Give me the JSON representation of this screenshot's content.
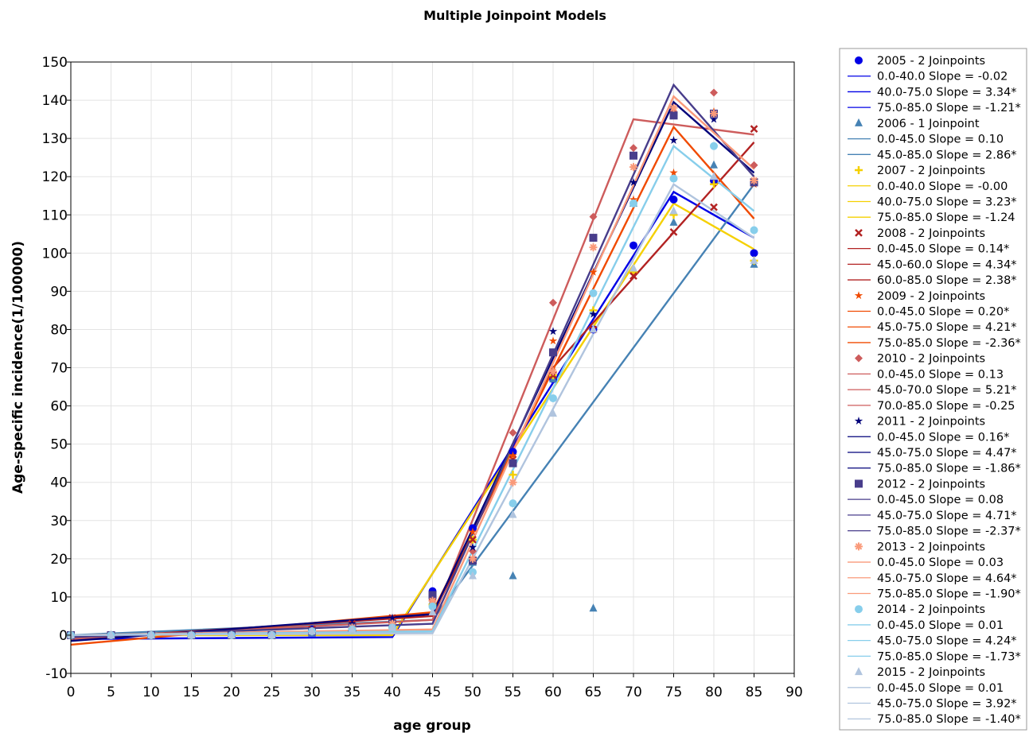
{
  "chart_data": {
    "type": "line",
    "title": "Multiple Joinpoint Models",
    "xlabel": "age group",
    "ylabel": "Age-specific incidence(1/100000)",
    "xlim": [
      0,
      90
    ],
    "ylim": [
      -10,
      150
    ],
    "grid": true,
    "legend_position": "right",
    "x_ticks": [
      "0",
      "5",
      "10",
      "15",
      "20",
      "25",
      "30",
      "35",
      "40",
      "45",
      "50",
      "55",
      "60",
      "65",
      "70",
      "75",
      "80",
      "85",
      "90"
    ],
    "y_ticks": [
      "-10",
      "0",
      "10",
      "20",
      "30",
      "40",
      "50",
      "60",
      "70",
      "80",
      "90",
      "100",
      "110",
      "120",
      "130",
      "140",
      "150"
    ],
    "series": [
      {
        "name": "2005 - 2 Joinpoints",
        "color": "#0000e6",
        "marker": "circle",
        "points": [
          [
            0,
            0
          ],
          [
            5,
            0
          ],
          [
            10,
            0
          ],
          [
            15,
            0
          ],
          [
            20,
            0
          ],
          [
            25,
            0
          ],
          [
            30,
            1.5
          ],
          [
            35,
            2
          ],
          [
            40,
            3.5
          ],
          [
            45,
            11.5
          ],
          [
            50,
            28
          ],
          [
            55,
            48
          ],
          [
            60,
            67
          ],
          [
            65,
            80
          ],
          [
            70,
            102
          ],
          [
            75,
            114
          ],
          [
            80,
            119
          ],
          [
            85,
            100
          ]
        ],
        "fit": [
          [
            0,
            -1
          ],
          [
            40,
            -0.5
          ],
          [
            75,
            116
          ],
          [
            85,
            104
          ]
        ],
        "segments": [
          "0.0-40.0 Slope = -0.02",
          "40.0-75.0 Slope =  3.34*",
          "75.0-85.0 Slope = -1.21*"
        ]
      },
      {
        "name": "2006 - 1 Joinpoint",
        "color": "#4682b4",
        "marker": "triangle",
        "points": [
          [
            0,
            0
          ],
          [
            5,
            0
          ],
          [
            10,
            0
          ],
          [
            15,
            0
          ],
          [
            20,
            0
          ],
          [
            25,
            0
          ],
          [
            30,
            0.5
          ],
          [
            35,
            2
          ],
          [
            40,
            3
          ],
          [
            45,
            9
          ],
          [
            50,
            19
          ],
          [
            55,
            15.5
          ],
          [
            60,
            67
          ],
          [
            65,
            7
          ],
          [
            70,
            113
          ],
          [
            75,
            108
          ],
          [
            80,
            123
          ],
          [
            85,
            97
          ]
        ],
        "fit": [
          [
            0,
            0
          ],
          [
            45,
            4
          ],
          [
            85,
            118
          ]
        ],
        "segments": [
          "0.0-45.0 Slope =  0.10",
          "45.0-85.0 Slope =  2.86*"
        ]
      },
      {
        "name": "2007 - 2 Joinpoints",
        "color": "#f5d000",
        "marker": "plus",
        "points": [
          [
            0,
            0
          ],
          [
            5,
            0
          ],
          [
            10,
            0
          ],
          [
            15,
            0
          ],
          [
            20,
            0
          ],
          [
            25,
            0
          ],
          [
            30,
            1
          ],
          [
            35,
            1.5
          ],
          [
            40,
            2
          ],
          [
            45,
            8
          ],
          [
            50,
            25
          ],
          [
            55,
            42
          ],
          [
            60,
            68
          ],
          [
            65,
            85
          ],
          [
            70,
            95
          ],
          [
            75,
            110
          ],
          [
            80,
            118
          ],
          [
            85,
            98
          ]
        ],
        "fit": [
          [
            0,
            0
          ],
          [
            40,
            0
          ],
          [
            75,
            113
          ],
          [
            85,
            101
          ]
        ],
        "segments": [
          "0.0-40.0 Slope = -0.00",
          "40.0-75.0 Slope =  3.23*",
          "75.0-85.0 Slope = -1.24"
        ]
      },
      {
        "name": "2008 - 2 Joinpoints",
        "color": "#b22222",
        "marker": "x",
        "points": [
          [
            0,
            0
          ],
          [
            5,
            0
          ],
          [
            10,
            0
          ],
          [
            15,
            0
          ],
          [
            20,
            0
          ],
          [
            25,
            0
          ],
          [
            30,
            1.5
          ],
          [
            35,
            3
          ],
          [
            40,
            4.5
          ],
          [
            45,
            10
          ],
          [
            50,
            25
          ],
          [
            55,
            46
          ],
          [
            60,
            68
          ],
          [
            65,
            80
          ],
          [
            70,
            94
          ],
          [
            75,
            105.5
          ],
          [
            80,
            112
          ],
          [
            85,
            132.5
          ]
        ],
        "fit": [
          [
            0,
            -1
          ],
          [
            45,
            5
          ],
          [
            60,
            70
          ],
          [
            85,
            129
          ]
        ],
        "segments": [
          "0.0-45.0 Slope =  0.14*",
          "45.0-60.0 Slope =  4.34*",
          "60.0-85.0 Slope =  2.38*"
        ]
      },
      {
        "name": "2009 - 2 Joinpoints",
        "color": "#f04a00",
        "marker": "star",
        "points": [
          [
            0,
            0
          ],
          [
            5,
            0
          ],
          [
            10,
            0
          ],
          [
            15,
            0
          ],
          [
            20,
            0
          ],
          [
            25,
            0
          ],
          [
            30,
            1.5
          ],
          [
            35,
            2.5
          ],
          [
            40,
            4
          ],
          [
            45,
            10
          ],
          [
            50,
            27
          ],
          [
            55,
            47
          ],
          [
            60,
            77
          ],
          [
            65,
            95
          ],
          [
            70,
            114
          ],
          [
            75,
            121
          ],
          [
            80,
            137
          ],
          [
            85,
            118
          ]
        ],
        "fit": [
          [
            0,
            -2.5
          ],
          [
            45,
            6
          ],
          [
            75,
            133
          ],
          [
            85,
            109
          ]
        ],
        "segments": [
          "0.0-45.0 Slope =  0.20*",
          "45.0-75.0 Slope =  4.21*",
          "75.0-85.0 Slope = -2.36*"
        ]
      },
      {
        "name": "2010 - 2 Joinpoints",
        "color": "#cd5c5c",
        "marker": "diamond",
        "points": [
          [
            0,
            0
          ],
          [
            5,
            0
          ],
          [
            10,
            0
          ],
          [
            15,
            0
          ],
          [
            20,
            0
          ],
          [
            25,
            0
          ],
          [
            30,
            1
          ],
          [
            35,
            2
          ],
          [
            40,
            3
          ],
          [
            45,
            9
          ],
          [
            50,
            22
          ],
          [
            55,
            53
          ],
          [
            60,
            87
          ],
          [
            65,
            109.5
          ],
          [
            70,
            127.5
          ],
          [
            75,
            137
          ],
          [
            80,
            142
          ],
          [
            85,
            123
          ]
        ],
        "fit": [
          [
            0,
            -1
          ],
          [
            45,
            4
          ],
          [
            70,
            135
          ],
          [
            85,
            131
          ]
        ],
        "segments": [
          "0.0-45.0 Slope =  0.13",
          "45.0-70.0 Slope =  5.21*",
          "70.0-85.0 Slope = -0.25"
        ]
      },
      {
        "name": "2011 - 2 Joinpoints",
        "color": "#00007a",
        "marker": "star",
        "points": [
          [
            0,
            0
          ],
          [
            5,
            0
          ],
          [
            10,
            0
          ],
          [
            15,
            0
          ],
          [
            20,
            0
          ],
          [
            25,
            0
          ],
          [
            30,
            1.5
          ],
          [
            35,
            3
          ],
          [
            40,
            4.5
          ],
          [
            45,
            10
          ],
          [
            50,
            23
          ],
          [
            55,
            45
          ],
          [
            60,
            79.5
          ],
          [
            65,
            84
          ],
          [
            70,
            118.5
          ],
          [
            75,
            129.5
          ],
          [
            80,
            135
          ],
          [
            85,
            118.5
          ]
        ],
        "fit": [
          [
            0,
            -1.5
          ],
          [
            45,
            5.5
          ],
          [
            75,
            139.5
          ],
          [
            85,
            121
          ]
        ],
        "segments": [
          "0.0-45.0 Slope =  0.16*",
          "45.0-75.0 Slope =  4.47*",
          "75.0-85.0 Slope = -1.86*"
        ]
      },
      {
        "name": "2012 - 2 Joinpoints",
        "color": "#483d8b",
        "marker": "square",
        "points": [
          [
            0,
            0
          ],
          [
            5,
            0
          ],
          [
            10,
            0
          ],
          [
            15,
            0
          ],
          [
            20,
            0
          ],
          [
            25,
            0
          ],
          [
            30,
            1
          ],
          [
            35,
            2
          ],
          [
            40,
            3
          ],
          [
            45,
            10.5
          ],
          [
            50,
            19.5
          ],
          [
            55,
            45
          ],
          [
            60,
            74
          ],
          [
            65,
            104
          ],
          [
            70,
            125.5
          ],
          [
            75,
            136
          ],
          [
            80,
            136.5
          ],
          [
            85,
            118.5
          ]
        ],
        "fit": [
          [
            0,
            -0.5
          ],
          [
            45,
            3
          ],
          [
            75,
            144
          ],
          [
            85,
            120
          ]
        ],
        "segments": [
          "0.0-45.0 Slope =  0.08",
          "45.0-75.0 Slope =  4.71*",
          "75.0-85.0 Slope = -2.37*"
        ]
      },
      {
        "name": "2013 - 2 Joinpoints",
        "color": "#fa9a7a",
        "marker": "asterisk",
        "points": [
          [
            0,
            0
          ],
          [
            5,
            0
          ],
          [
            10,
            0
          ],
          [
            15,
            0
          ],
          [
            20,
            0
          ],
          [
            25,
            0
          ],
          [
            30,
            1
          ],
          [
            35,
            2
          ],
          [
            40,
            3
          ],
          [
            45,
            9
          ],
          [
            50,
            20
          ],
          [
            55,
            40
          ],
          [
            60,
            69
          ],
          [
            65,
            101.5
          ],
          [
            70,
            122.5
          ],
          [
            75,
            138
          ],
          [
            80,
            136.5
          ],
          [
            85,
            119
          ]
        ],
        "fit": [
          [
            0,
            0
          ],
          [
            45,
            1.5
          ],
          [
            75,
            141
          ],
          [
            85,
            122
          ]
        ],
        "segments": [
          "0.0-45.0 Slope =  0.03",
          "45.0-75.0 Slope =  4.64*",
          "75.0-85.0 Slope = -1.90*"
        ]
      },
      {
        "name": "2014 - 2 Joinpoints",
        "color": "#87ceeb",
        "marker": "circle",
        "points": [
          [
            0,
            0
          ],
          [
            5,
            0
          ],
          [
            10,
            0
          ],
          [
            15,
            0
          ],
          [
            20,
            0
          ],
          [
            25,
            0
          ],
          [
            30,
            1
          ],
          [
            35,
            1.5
          ],
          [
            40,
            2
          ],
          [
            45,
            7.5
          ],
          [
            50,
            16.5
          ],
          [
            55,
            34.5
          ],
          [
            60,
            62
          ],
          [
            65,
            89.5
          ],
          [
            70,
            113
          ],
          [
            75,
            119.5
          ],
          [
            80,
            128
          ],
          [
            85,
            106
          ]
        ],
        "fit": [
          [
            0,
            0
          ],
          [
            45,
            1
          ],
          [
            75,
            128
          ],
          [
            85,
            111
          ]
        ],
        "segments": [
          "0.0-45.0 Slope =  0.01",
          "45.0-75.0 Slope =  4.24*",
          "75.0-85.0 Slope = -1.73*"
        ]
      },
      {
        "name": "2015 - 2 Joinpoints",
        "color": "#b0c4de",
        "marker": "triangle",
        "points": [
          [
            0,
            0
          ],
          [
            5,
            0
          ],
          [
            10,
            0
          ],
          [
            15,
            0
          ],
          [
            20,
            0
          ],
          [
            25,
            0
          ],
          [
            30,
            1
          ],
          [
            35,
            1.5
          ],
          [
            40,
            2
          ],
          [
            45,
            6
          ],
          [
            50,
            15.5
          ],
          [
            55,
            31.5
          ],
          [
            60,
            58
          ],
          [
            65,
            80
          ],
          [
            70,
            96
          ],
          [
            75,
            111
          ],
          [
            80,
            120
          ],
          [
            85,
            98
          ]
        ],
        "fit": [
          [
            0,
            0
          ],
          [
            45,
            0.5
          ],
          [
            75,
            118
          ],
          [
            85,
            104
          ]
        ],
        "segments": [
          "0.0-45.0 Slope =  0.01",
          "45.0-75.0 Slope =  3.92*",
          "75.0-85.0 Slope = -1.40*"
        ]
      }
    ]
  }
}
